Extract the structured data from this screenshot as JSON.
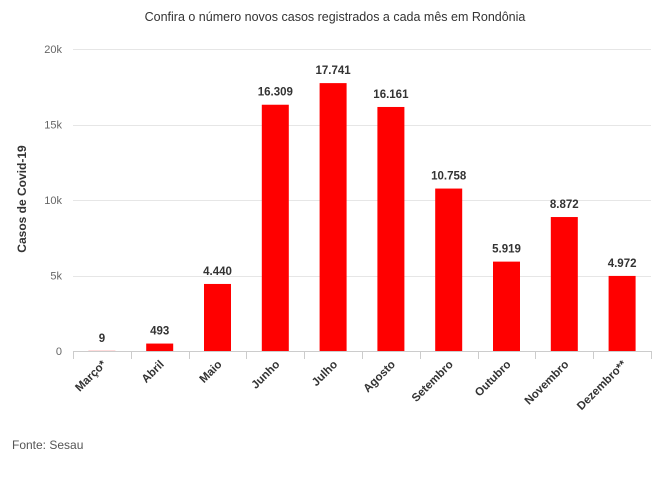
{
  "chart_data": {
    "type": "bar",
    "title": "Confira o número novos casos registrados a cada mês em Rondônia",
    "ylabel": "Casos de Covid-19",
    "xlabel": "",
    "categories": [
      "Março*",
      "Abril",
      "Maio",
      "Junho",
      "Julho",
      "Agosto",
      "Setembro",
      "Outubro",
      "Novembro",
      "Dezembro**"
    ],
    "values": [
      9,
      493,
      4440,
      16309,
      17741,
      16161,
      10758,
      5919,
      8872,
      4972
    ],
    "value_labels": [
      "9",
      "493",
      "4.440",
      "16.309",
      "17.741",
      "16.161",
      "10.758",
      "5.919",
      "8.872",
      "4.972"
    ],
    "ylim": [
      0,
      20000
    ],
    "yticks": [
      0,
      5000,
      10000,
      15000,
      20000
    ],
    "ytick_labels": [
      "0",
      "5k",
      "10k",
      "15k",
      "20k"
    ],
    "grid": true,
    "bar_color": "#ff0000"
  },
  "source": "Fonte: Sesau"
}
